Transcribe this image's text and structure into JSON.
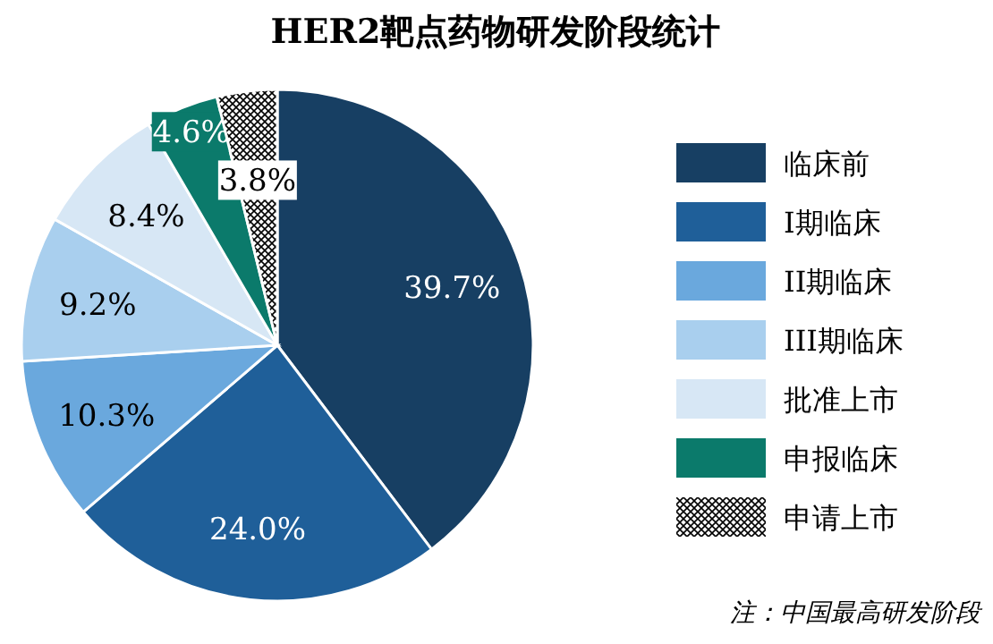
{
  "chart_data": {
    "type": "pie",
    "title": "HER2靶点药物研发阶段统计",
    "categories": [
      "临床前",
      "I期临床",
      "II期临床",
      "III期临床",
      "批准上市",
      "申报临床",
      "申请上市"
    ],
    "values": [
      39.7,
      24.0,
      10.3,
      9.2,
      8.4,
      4.6,
      3.8
    ],
    "value_labels": [
      "39.7%",
      "24.0%",
      "10.3%",
      "9.2%",
      "8.4%",
      "4.6%",
      "3.8%"
    ],
    "colors": [
      "#173f63",
      "#1f5f99",
      "#6aa8dd",
      "#a9cfee",
      "#d7e7f5",
      "#0b7a6b",
      "#ffffff"
    ],
    "legend": "right",
    "annotations": [
      "注：中国最高研发阶段"
    ]
  }
}
